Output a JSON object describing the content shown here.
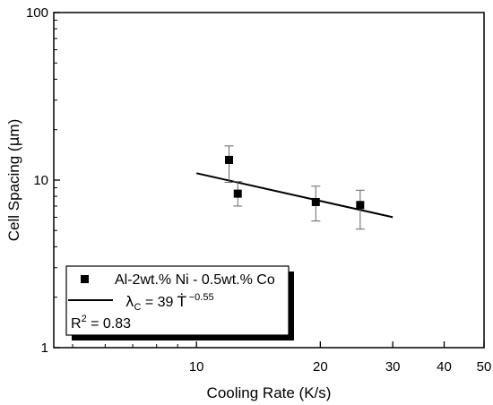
{
  "chart_data": {
    "type": "scatter",
    "xlabel": "Cooling Rate (K/s)",
    "ylabel_prefix": "Cell Spacing (",
    "ylabel_mu": "μ",
    "ylabel_suffix": "m)",
    "xscale": "log",
    "yscale": "log",
    "xlim": [
      4.5,
      50
    ],
    "ylim": [
      1,
      100
    ],
    "grid": false,
    "legend_position": "bottom-left",
    "x_ticks": [
      {
        "value": 10,
        "label": "10"
      },
      {
        "value": 20,
        "label": "20"
      },
      {
        "value": 30,
        "label": "30"
      },
      {
        "value": 40,
        "label": "40"
      },
      {
        "value": 50,
        "label": "50"
      }
    ],
    "y_ticks": [
      {
        "value": 1,
        "label": "1"
      },
      {
        "value": 10,
        "label": "10"
      },
      {
        "value": 100,
        "label": "100"
      }
    ],
    "series": [
      {
        "name": "Al-2wt.% Ni - 0.5wt.% Co",
        "marker": "square",
        "color": "#000000",
        "points": [
          {
            "x": 12.0,
            "y": 13.2,
            "ymin": 9.7,
            "ymax": 16.0
          },
          {
            "x": 12.6,
            "y": 8.3,
            "ymin": 7.0,
            "ymax": 9.8
          },
          {
            "x": 19.5,
            "y": 7.4,
            "ymin": 5.7,
            "ymax": 9.2
          },
          {
            "x": 25.0,
            "y": 7.1,
            "ymin": 5.1,
            "ymax": 8.7
          }
        ]
      }
    ],
    "fit": {
      "coefficient": 39,
      "exponent": -0.55,
      "x_range": [
        10,
        30
      ],
      "label_lambda": "λ",
      "label_sub": "C",
      "label_eq": " = 39 ",
      "label_symbol": "Ṫ",
      "label_exp": " −0.55",
      "r2_prefix": "R",
      "r2_sup": "2",
      "r2_value": " = 0.83"
    }
  }
}
